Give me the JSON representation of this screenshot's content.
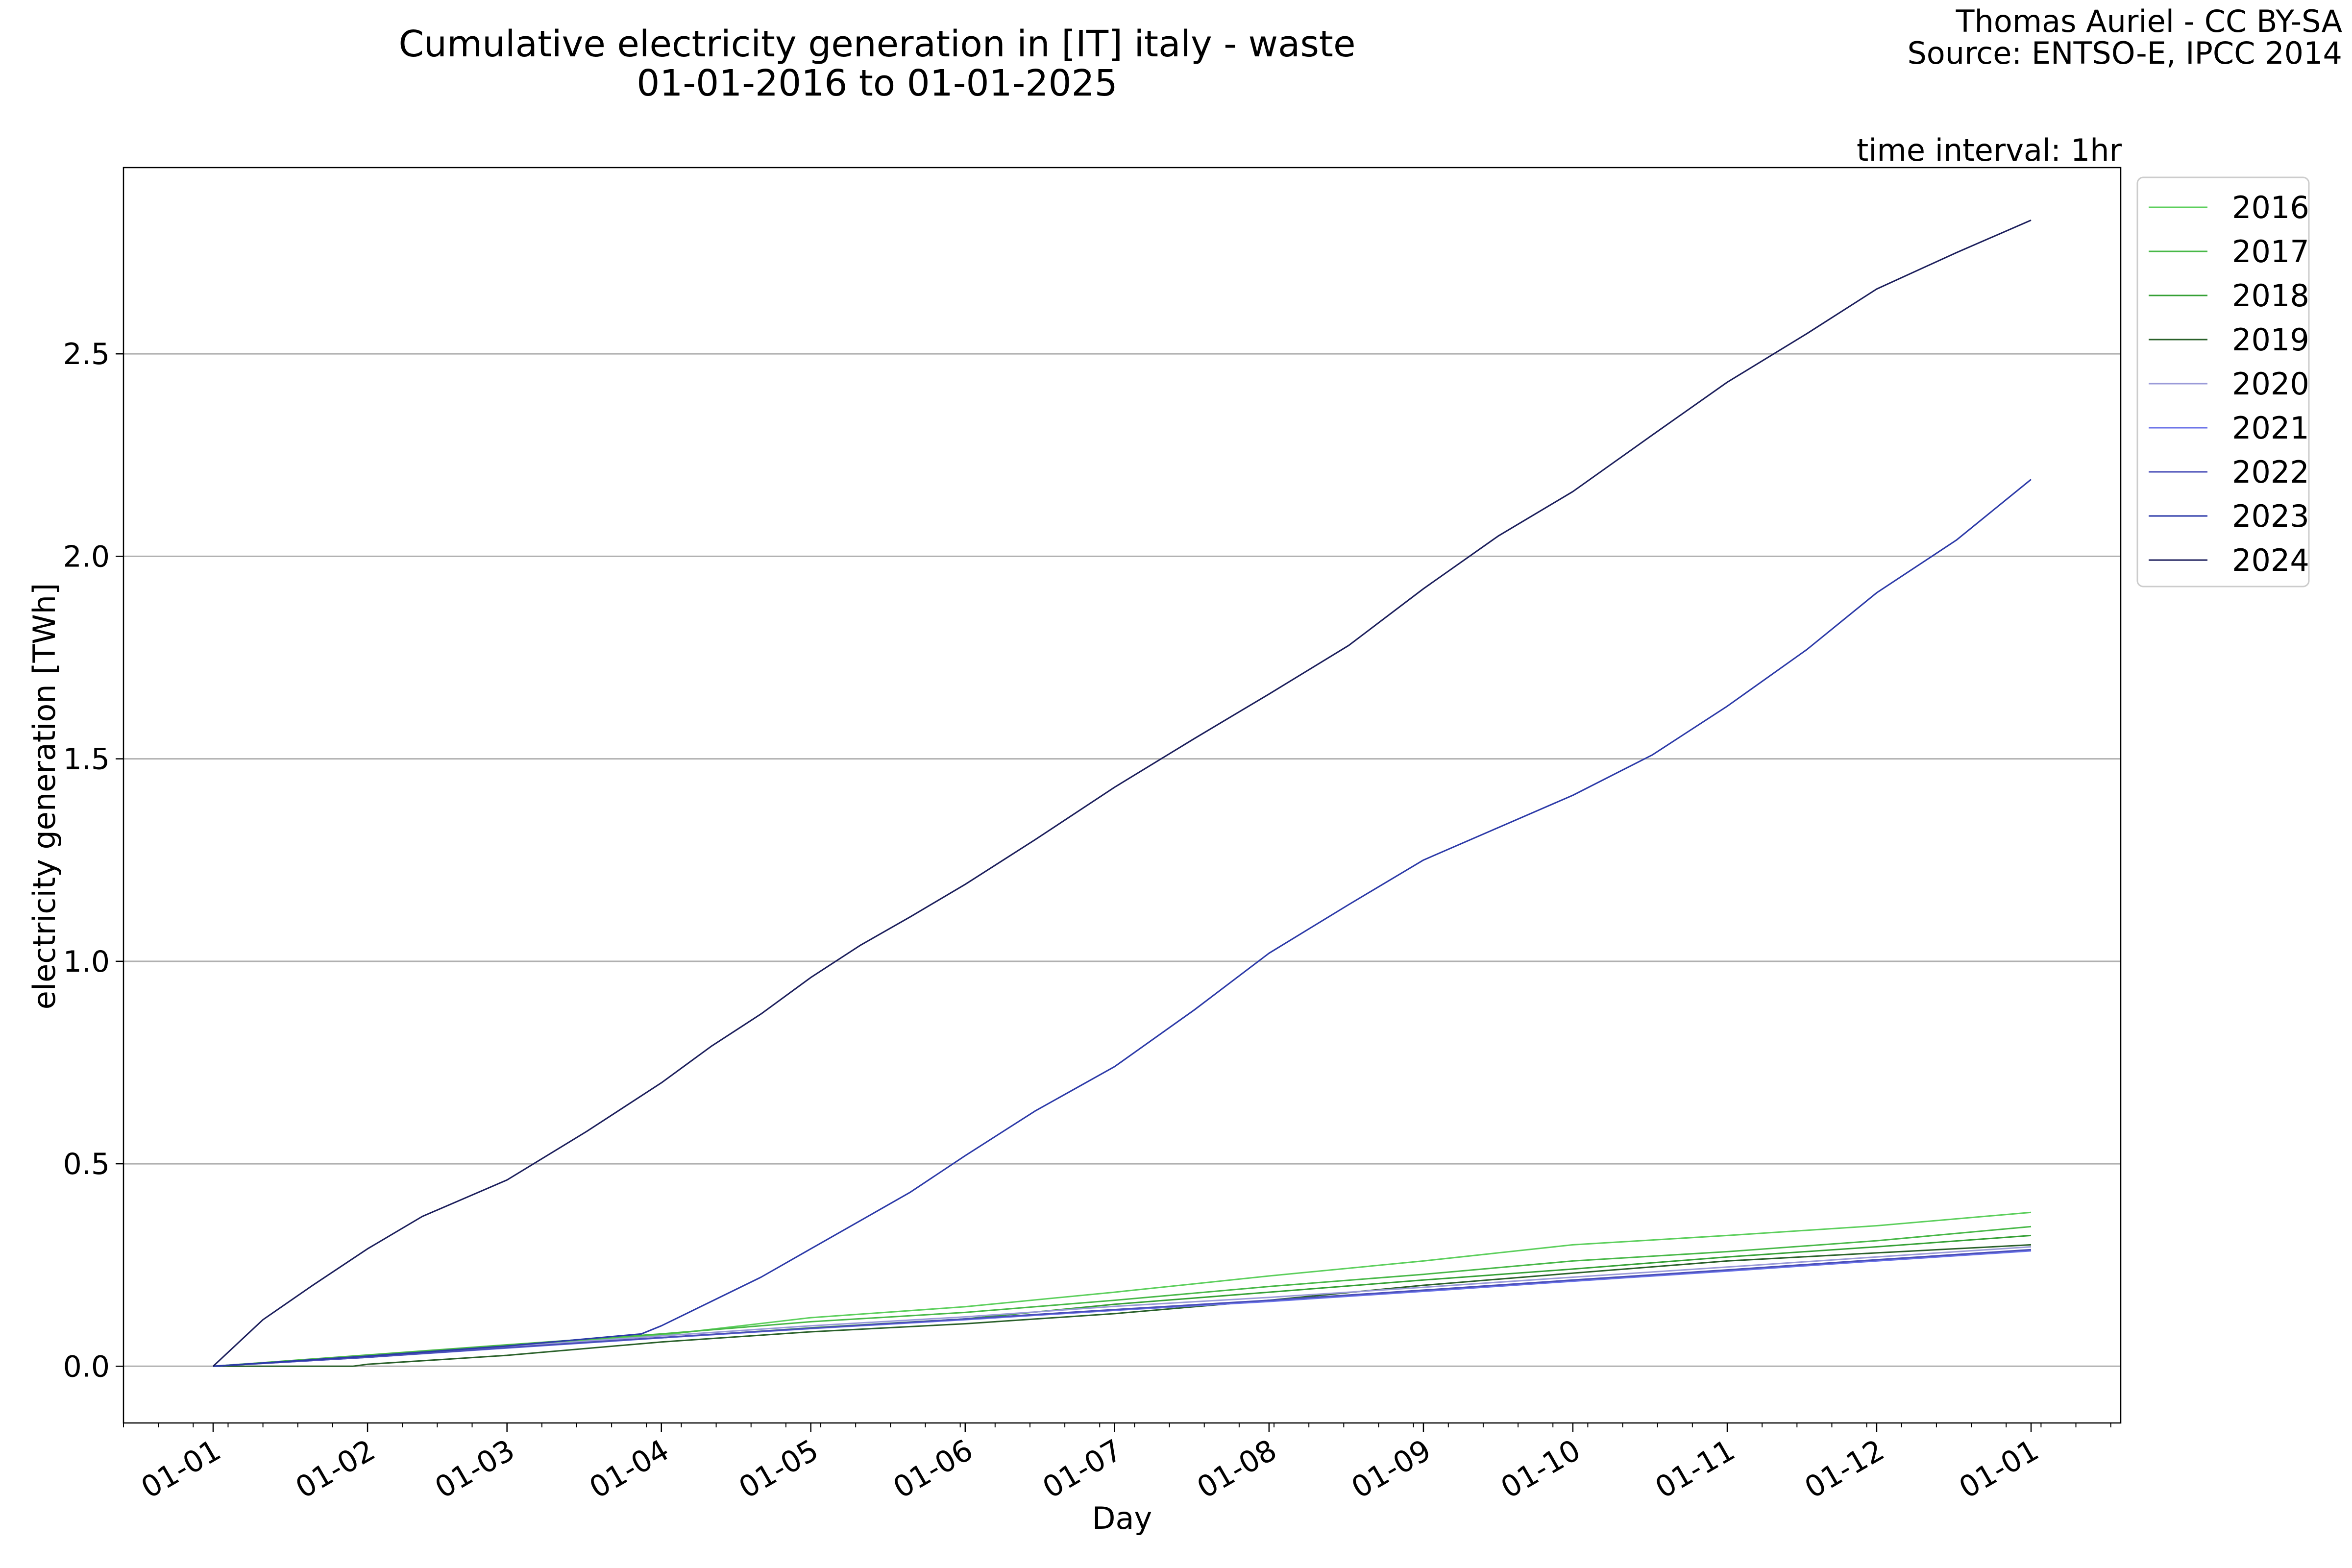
{
  "header": {
    "title_line1": "Cumulative electricity generation in [IT] italy - waste",
    "title_line2": "01-01-2016 to 01-01-2025",
    "credit_line1": "Thomas Auriel - CC BY-SA",
    "credit_line2": "Source: ENTSO-E, IPCC 2014",
    "interval": "time interval: 1hr"
  },
  "chart_data": {
    "type": "line",
    "xlabel": "Day",
    "ylabel": "electricity generation [TWh]",
    "x_ticks": [
      "01-01",
      "01-02",
      "01-03",
      "01-04",
      "01-05",
      "01-06",
      "01-07",
      "01-08",
      "01-09",
      "01-10",
      "01-11",
      "01-12",
      "01-01"
    ],
    "x_tick_days": [
      0,
      31,
      59,
      90,
      120,
      151,
      181,
      212,
      243,
      273,
      304,
      334,
      365
    ],
    "xlim": [
      -18,
      383
    ],
    "ylim": [
      -0.14,
      2.96
    ],
    "y_ticks": [
      0.0,
      0.5,
      1.0,
      1.5,
      2.0,
      2.5
    ],
    "y_tick_labels": [
      "0.0",
      "0.5",
      "1.0",
      "1.5",
      "2.0",
      "2.5"
    ],
    "grid": "y",
    "legend_position": "outside-top-right",
    "x_unit_note": "day of year",
    "series": [
      {
        "name": "2016",
        "color": "#5ccf5c",
        "x": [
          0,
          31,
          59,
          90,
          120,
          151,
          181,
          212,
          243,
          273,
          304,
          334,
          365
        ],
        "y": [
          0,
          0.027,
          0.05,
          0.077,
          0.12,
          0.147,
          0.183,
          0.223,
          0.26,
          0.3,
          0.323,
          0.347,
          0.38
        ]
      },
      {
        "name": "2017",
        "color": "#48b848",
        "x": [
          0,
          31,
          59,
          90,
          120,
          151,
          181,
          212,
          243,
          273,
          304,
          334,
          365
        ],
        "y": [
          0,
          0.028,
          0.053,
          0.08,
          0.11,
          0.133,
          0.163,
          0.197,
          0.227,
          0.26,
          0.283,
          0.31,
          0.345
        ]
      },
      {
        "name": "2018",
        "color": "#35a035",
        "x": [
          0,
          31,
          59,
          90,
          120,
          151,
          181,
          212,
          243,
          273,
          304,
          334,
          365
        ],
        "y": [
          0,
          0.025,
          0.05,
          0.07,
          0.095,
          0.117,
          0.153,
          0.183,
          0.213,
          0.24,
          0.27,
          0.295,
          0.323
        ]
      },
      {
        "name": "2019",
        "color": "#2a602a",
        "x": [
          0,
          28,
          31,
          59,
          90,
          120,
          151,
          181,
          212,
          243,
          273,
          304,
          334,
          365
        ],
        "y": [
          0,
          0,
          0.005,
          0.027,
          0.06,
          0.085,
          0.105,
          0.13,
          0.163,
          0.2,
          0.23,
          0.26,
          0.28,
          0.3
        ]
      },
      {
        "name": "2020",
        "color": "#9a9ad8",
        "x": [
          0,
          31,
          59,
          90,
          120,
          151,
          181,
          212,
          243,
          273,
          304,
          334,
          365
        ],
        "y": [
          0,
          0.025,
          0.048,
          0.075,
          0.1,
          0.122,
          0.148,
          0.17,
          0.195,
          0.22,
          0.245,
          0.27,
          0.295
        ]
      },
      {
        "name": "2021",
        "color": "#6a72e8",
        "x": [
          0,
          31,
          59,
          90,
          120,
          151,
          181,
          212,
          243,
          273,
          304,
          334,
          365
        ],
        "y": [
          0,
          0.022,
          0.045,
          0.07,
          0.093,
          0.115,
          0.138,
          0.16,
          0.185,
          0.21,
          0.235,
          0.26,
          0.285
        ]
      },
      {
        "name": "2022",
        "color": "#4a4fb8",
        "x": [
          0,
          31,
          59,
          90,
          120,
          151,
          181,
          212,
          243,
          273,
          304,
          334,
          365
        ],
        "y": [
          0,
          0.022,
          0.046,
          0.071,
          0.094,
          0.117,
          0.14,
          0.163,
          0.188,
          0.213,
          0.238,
          0.263,
          0.288
        ]
      },
      {
        "name": "2023",
        "color": "#2c3aa8",
        "x": [
          0,
          31,
          59,
          86,
          90,
          100,
          110,
          120,
          130,
          140,
          151,
          165,
          181,
          197,
          212,
          228,
          243,
          258,
          273,
          289,
          304,
          320,
          334,
          350,
          365
        ],
        "y": [
          0,
          0.025,
          0.05,
          0.08,
          0.1,
          0.16,
          0.22,
          0.29,
          0.36,
          0.43,
          0.52,
          0.63,
          0.74,
          0.88,
          1.02,
          1.14,
          1.25,
          1.33,
          1.41,
          1.51,
          1.63,
          1.77,
          1.91,
          2.04,
          2.19
        ]
      },
      {
        "name": "2024",
        "color": "#1c1f5c",
        "x": [
          0,
          10,
          20,
          31,
          42,
          59,
          75,
          90,
          100,
          110,
          120,
          130,
          140,
          151,
          165,
          181,
          197,
          212,
          228,
          243,
          258,
          273,
          289,
          304,
          320,
          334,
          350,
          365
        ],
        "y": [
          0,
          0.115,
          0.2,
          0.29,
          0.37,
          0.46,
          0.58,
          0.7,
          0.79,
          0.87,
          0.96,
          1.04,
          1.11,
          1.19,
          1.3,
          1.43,
          1.55,
          1.66,
          1.78,
          1.92,
          2.05,
          2.16,
          2.3,
          2.43,
          2.55,
          2.66,
          2.75,
          2.83
        ]
      }
    ]
  }
}
